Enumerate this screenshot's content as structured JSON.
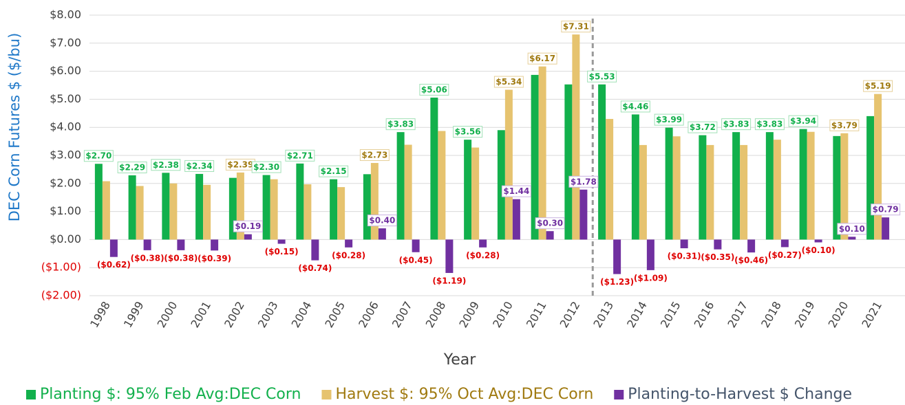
{
  "chart_data": {
    "type": "bar",
    "y_label": "DEC Corn Futures $ ($/bu)",
    "x_label": "Year",
    "categories": [
      "1998",
      "1999",
      "2000",
      "2001",
      "2002",
      "2003",
      "2004",
      "2005",
      "2006",
      "2007",
      "2008",
      "2009",
      "2010",
      "2011",
      "2012",
      "2013",
      "2014",
      "2015",
      "2016",
      "2017",
      "2018",
      "2019",
      "2020",
      "2021"
    ],
    "series": [
      {
        "name": "Planting $: 95% Feb Avg:DEC Corn",
        "color": "#12b04c",
        "label_color": "#12b04c",
        "values": [
          2.7,
          2.29,
          2.38,
          2.34,
          2.2,
          2.3,
          2.71,
          2.15,
          2.33,
          3.83,
          5.06,
          3.56,
          3.9,
          5.87,
          5.53,
          5.53,
          4.46,
          3.99,
          3.72,
          3.83,
          3.83,
          3.94,
          3.69,
          4.4
        ],
        "value_labels": [
          "$2.70",
          "$2.29",
          "$2.38",
          "$2.34",
          null,
          "$2.30",
          "$2.71",
          "$2.15",
          null,
          "$3.83",
          "$5.06",
          "$3.56",
          null,
          null,
          null,
          "$5.53",
          "$4.46",
          "$3.99",
          "$3.72",
          "$3.83",
          "$3.83",
          "$3.94",
          null,
          null
        ]
      },
      {
        "name": "Harvest $: 95% Oct Avg:DEC Corn",
        "color": "#e6c36f",
        "label_color": "#a07a10",
        "values": [
          2.08,
          1.91,
          2.0,
          1.95,
          2.39,
          2.15,
          1.97,
          1.87,
          2.73,
          3.38,
          3.87,
          3.28,
          5.34,
          6.17,
          7.31,
          4.3,
          3.37,
          3.68,
          3.37,
          3.37,
          3.56,
          3.84,
          3.79,
          5.19
        ],
        "value_labels": [
          null,
          null,
          null,
          null,
          "$2.39",
          null,
          null,
          null,
          "$2.73",
          null,
          null,
          null,
          "$5.34",
          "$6.17",
          "$7.31",
          null,
          null,
          null,
          null,
          null,
          null,
          null,
          "$3.79",
          "$5.19"
        ]
      },
      {
        "name": "Planting-to-Harvest $ Change",
        "color": "#7030a0",
        "label_color": "#44546a",
        "values": [
          -0.62,
          -0.38,
          -0.38,
          -0.39,
          0.19,
          -0.15,
          -0.74,
          -0.28,
          0.4,
          -0.45,
          -1.19,
          -0.28,
          1.44,
          0.3,
          1.78,
          -1.23,
          -1.09,
          -0.31,
          -0.35,
          -0.46,
          -0.27,
          -0.1,
          0.1,
          0.79
        ],
        "value_labels": [
          "($0.62)",
          "($0.38)",
          "($0.38)",
          "($0.39)",
          "$0.19",
          "($0.15)",
          "($0.74)",
          "($0.28)",
          "$0.40",
          "($0.45)",
          "($1.19)",
          "($0.28)",
          "$1.44",
          "$0.30",
          "$1.78",
          "($1.23)",
          "($1.09)",
          "($0.31)",
          "($0.35)",
          "($0.46)",
          "($0.27)",
          "($0.10)",
          "$0.10",
          "$0.79"
        ]
      }
    ],
    "ylim": [
      -2,
      8
    ],
    "yticks": [
      {
        "value": -2,
        "label": "($2.00)"
      },
      {
        "value": -1,
        "label": "($1.00)"
      },
      {
        "value": 0,
        "label": "$0.00"
      },
      {
        "value": 1,
        "label": "$1.00"
      },
      {
        "value": 2,
        "label": "$2.00"
      },
      {
        "value": 3,
        "label": "$3.00"
      },
      {
        "value": 4,
        "label": "$4.00"
      },
      {
        "value": 5,
        "label": "$5.00"
      },
      {
        "value": 6,
        "label": "$6.00"
      },
      {
        "value": 7,
        "label": "$7.00"
      },
      {
        "value": 8,
        "label": "$8.00"
      }
    ],
    "grid": true,
    "legend": "bottom"
  }
}
